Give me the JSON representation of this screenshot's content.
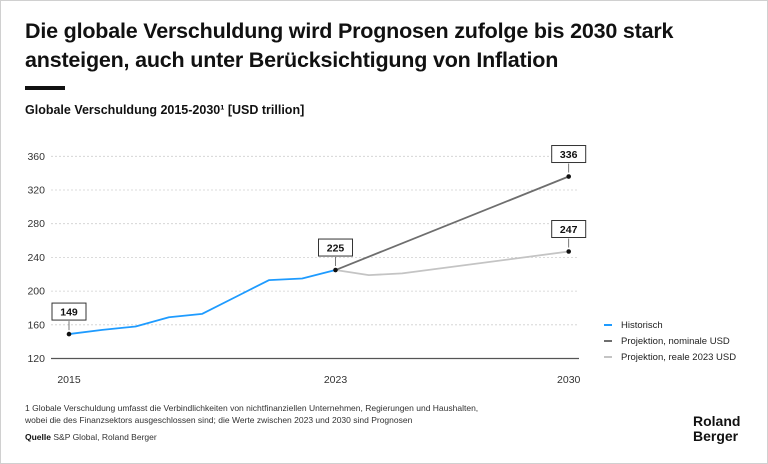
{
  "title": "Die globale Verschuldung wird Prognosen zufolge bis 2030 stark ansteigen, auch unter Berücksichtigung von Inflation",
  "subtitle": "Globale Verschuldung 2015-2030¹ [USD trillion]",
  "chart_data": {
    "type": "line",
    "title": "Globale Verschuldung 2015-2030¹ [USD trillion]",
    "xlabel": "",
    "ylabel": "",
    "xlim": [
      2015,
      2030
    ],
    "ylim": [
      120,
      370
    ],
    "x_ticks": [
      "2015",
      "2023",
      "2030"
    ],
    "y_ticks": [
      "120",
      "160",
      "200",
      "240",
      "280",
      "320",
      "360"
    ],
    "grid": "horizontal dashed",
    "legend": "right",
    "series": [
      {
        "name": "Historisch",
        "color": "#1e9bff",
        "x": [
          2015,
          2016,
          2017,
          2018,
          2019,
          2020,
          2021,
          2022,
          2023
        ],
        "y": [
          149,
          154,
          158,
          169,
          173,
          193,
          213,
          215,
          225
        ]
      },
      {
        "name": "Projektion, nominale USD",
        "color": "#6e6e6e",
        "x": [
          2023,
          2030
        ],
        "y": [
          225,
          336
        ]
      },
      {
        "name": "Projektion, reale 2023 USD",
        "color": "#c4c4c4",
        "x": [
          2023,
          2024,
          2025,
          2030
        ],
        "y": [
          225,
          219,
          221,
          247
        ]
      }
    ],
    "annotations": [
      {
        "x": 2015,
        "y": 149,
        "label": "149"
      },
      {
        "x": 2023,
        "y": 225,
        "label": "225"
      },
      {
        "x": 2030,
        "y": 336,
        "label": "336"
      },
      {
        "x": 2030,
        "y": 247,
        "label": "247"
      }
    ]
  },
  "footnote_line1": "1 Globale Verschuldung umfasst die Verbindlichkeiten von nichtfinanziellen Unternehmen, Regierungen und Haushalten,",
  "footnote_line2": "wobei die des Finanzsektors ausgeschlossen sind; die Werte zwischen 2023 und 2030 sind Prognosen",
  "source_label": "Quelle",
  "source_text": "S&P Global, Roland Berger",
  "logo_line1": "Roland",
  "logo_line2": "Berger"
}
